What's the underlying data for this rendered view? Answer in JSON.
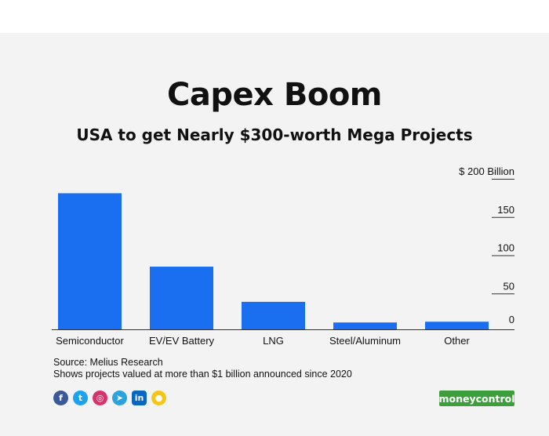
{
  "header": {
    "title": "Capex Boom",
    "subtitle": "USA to get Nearly $300-worth Mega Projects"
  },
  "chart_data": {
    "type": "bar",
    "title": "Capex Boom",
    "subtitle": "USA to get Nearly $300-worth Mega Projects",
    "categories": [
      "Semiconductor",
      "EV/EV Battery",
      "LNG",
      "Steel/Aluminum",
      "Other"
    ],
    "values": [
      178,
      82,
      36,
      9,
      10
    ],
    "unit_label": "$ 200 Billion",
    "ylim": [
      0,
      200
    ],
    "yticks": [
      0,
      50,
      100,
      150,
      200
    ],
    "ytick_labels": [
      "0",
      "50",
      "100",
      "150",
      "$ 200 Billion"
    ],
    "axis_position": "right",
    "grid": false,
    "bar_color": "#1a6ff0"
  },
  "footer": {
    "source": "Source: Melius Research",
    "note": "Shows projects valued at more than $1 billion announced since 2020",
    "brand": "moneycontrol",
    "social": [
      {
        "icon": "facebook-icon",
        "glyph": "f",
        "color": "#3b5998"
      },
      {
        "icon": "twitter-icon",
        "glyph": "t",
        "color": "#1da1f2"
      },
      {
        "icon": "instagram-icon",
        "glyph": "◎",
        "color": "#d6336c"
      },
      {
        "icon": "telegram-icon",
        "glyph": "➤",
        "color": "#2aa3df"
      },
      {
        "icon": "linkedin-icon",
        "glyph": "in",
        "color": "#0a66c2"
      },
      {
        "icon": "koo-icon",
        "glyph": "●",
        "color": "#f5c518"
      }
    ]
  }
}
